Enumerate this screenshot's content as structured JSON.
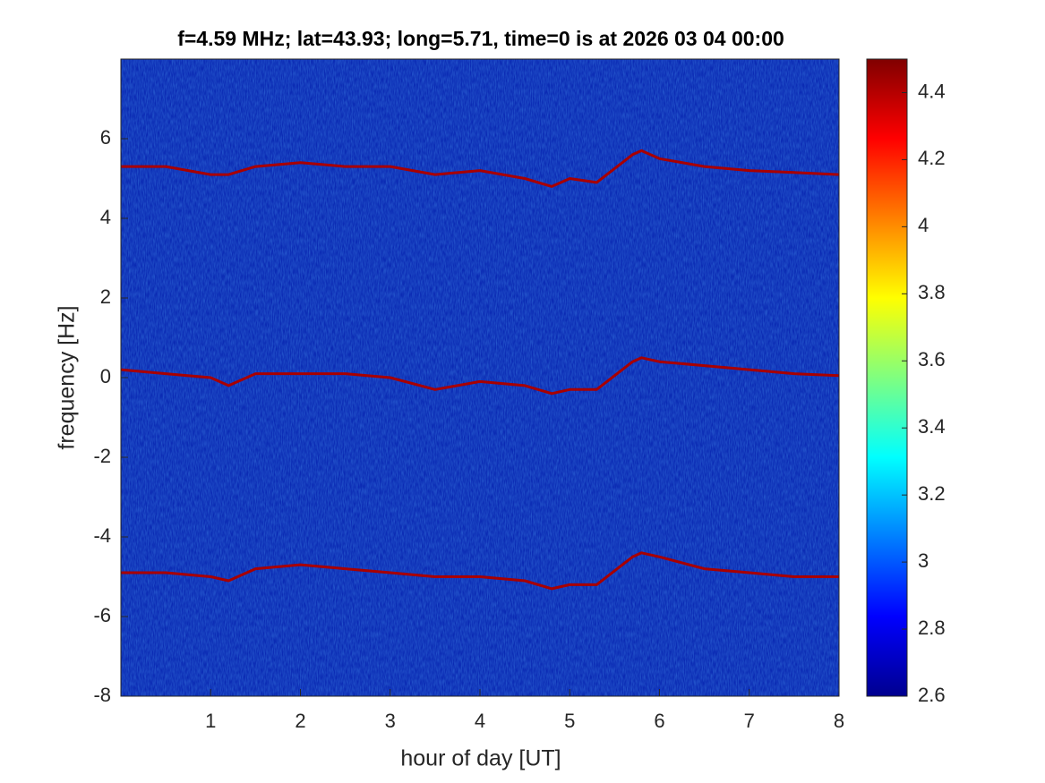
{
  "chart_data": {
    "type": "spectrogram",
    "title": "f=4.59 MHz;  lat=43.93; long=5.71, time=0 is at 2026 03 04 00:00",
    "x_label": "hour of day [UT]",
    "y_label": "frequency [Hz]",
    "xlim": [
      0,
      8
    ],
    "xticks": [
      1,
      2,
      3,
      4,
      5,
      6,
      7,
      8
    ],
    "ylim": [
      -8,
      8
    ],
    "yticks": [
      -8,
      -6,
      -4,
      -2,
      0,
      2,
      4,
      6
    ],
    "clim": [
      2.6,
      4.5
    ],
    "cticks": [
      2.6,
      2.8,
      3,
      3.2,
      3.4,
      3.6,
      3.8,
      4,
      4.2,
      4.4
    ],
    "background_color": "#0b2bb4",
    "series": [
      {
        "color": "#a80000",
        "x": [
          0,
          0.5,
          1,
          1.2,
          1.5,
          2,
          2.5,
          3,
          3.5,
          4,
          4.5,
          4.8,
          5,
          5.3,
          5.7,
          5.8,
          6,
          6.5,
          7,
          7.5,
          8
        ],
        "values": [
          5.3,
          5.3,
          5.1,
          5.1,
          5.3,
          5.4,
          5.3,
          5.3,
          5.1,
          5.2,
          5.0,
          4.8,
          5.0,
          4.9,
          5.6,
          5.7,
          5.5,
          5.3,
          5.2,
          5.15,
          5.1
        ]
      },
      {
        "color": "#a80000",
        "x": [
          0,
          0.5,
          1,
          1.2,
          1.5,
          2,
          2.5,
          3,
          3.5,
          4,
          4.5,
          4.8,
          5,
          5.3,
          5.7,
          5.8,
          6,
          6.5,
          7,
          7.5,
          8
        ],
        "values": [
          0.2,
          0.1,
          0.0,
          -0.2,
          0.1,
          0.1,
          0.1,
          0.0,
          -0.3,
          -0.1,
          -0.2,
          -0.4,
          -0.3,
          -0.3,
          0.4,
          0.5,
          0.4,
          0.3,
          0.2,
          0.1,
          0.05
        ]
      },
      {
        "color": "#a80000",
        "x": [
          0,
          0.5,
          1,
          1.2,
          1.5,
          2,
          2.5,
          3,
          3.5,
          4,
          4.5,
          4.8,
          5,
          5.3,
          5.7,
          5.8,
          6,
          6.5,
          7,
          7.5,
          8
        ],
        "values": [
          -4.9,
          -4.9,
          -5.0,
          -5.1,
          -4.8,
          -4.7,
          -4.8,
          -4.9,
          -5.0,
          -5.0,
          -5.1,
          -5.3,
          -5.2,
          -5.2,
          -4.5,
          -4.4,
          -4.5,
          -4.8,
          -4.9,
          -5.0,
          -5.0
        ]
      }
    ]
  }
}
